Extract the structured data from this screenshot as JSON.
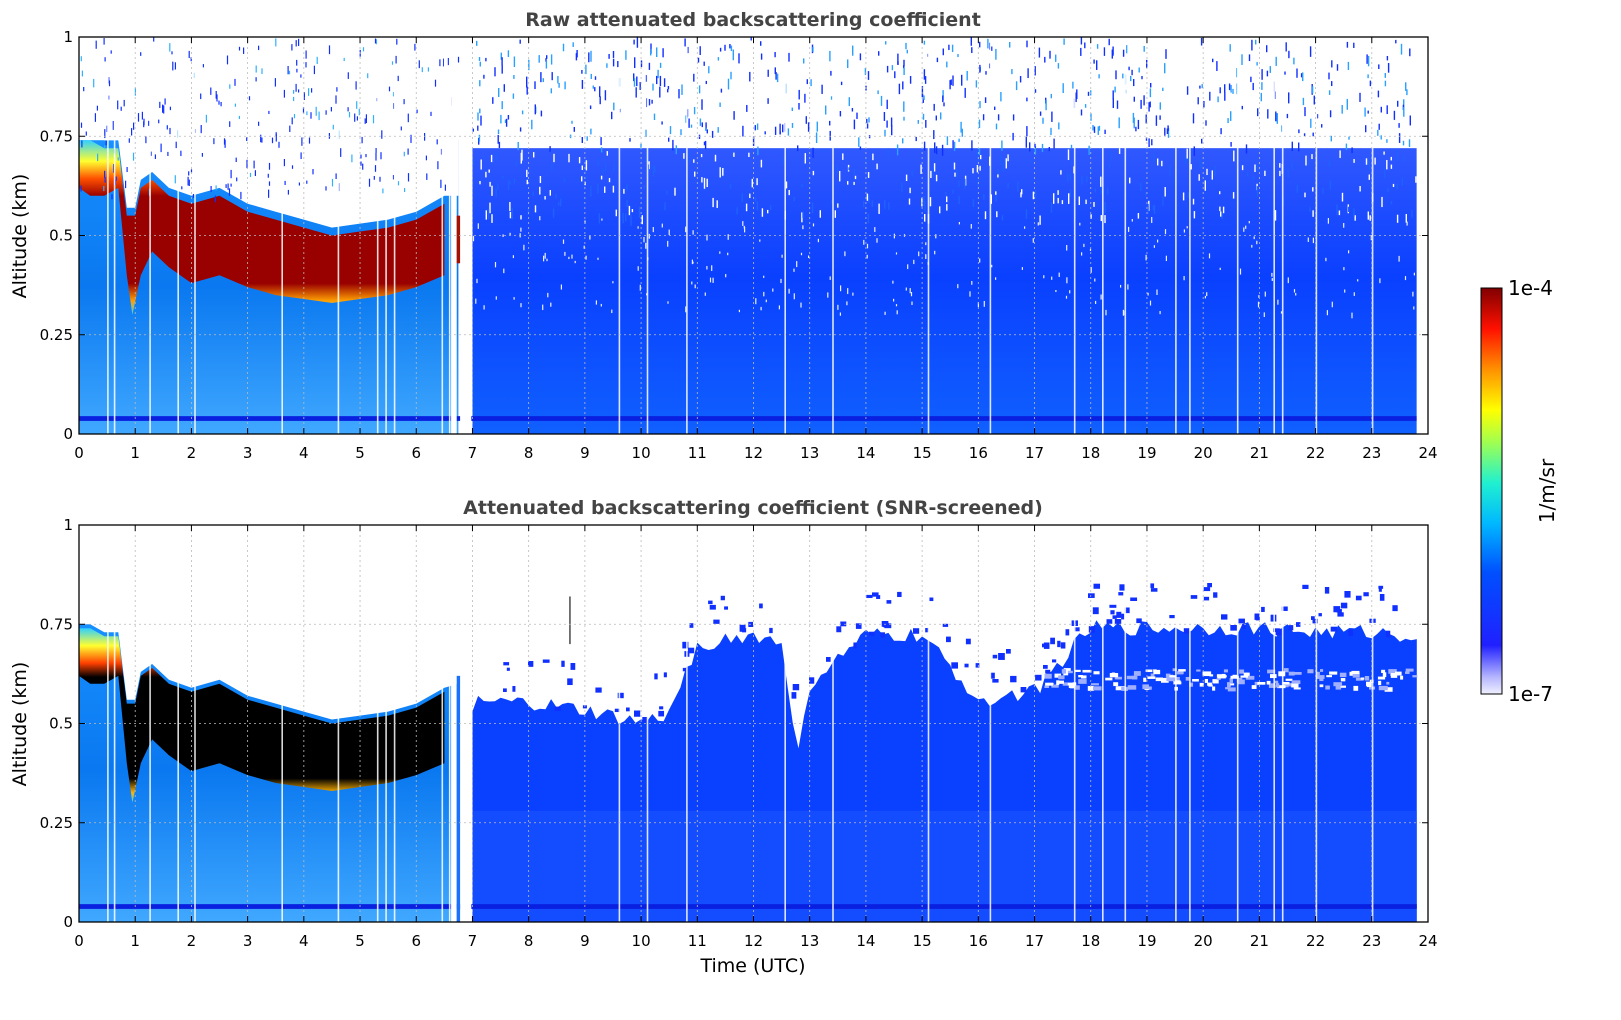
{
  "chart_data": [
    {
      "type": "heatmap",
      "title": "Raw attenuated backscattering coefficient",
      "xlabel": "",
      "ylabel": "Altitude (km)",
      "xlim": [
        0,
        24
      ],
      "ylim": [
        0,
        1
      ],
      "xticks": [
        "0",
        "1",
        "2",
        "3",
        "4",
        "5",
        "6",
        "7",
        "8",
        "9",
        "10",
        "11",
        "12",
        "13",
        "14",
        "15",
        "16",
        "17",
        "18",
        "19",
        "20",
        "21",
        "22",
        "23",
        "24"
      ],
      "yticks": [
        "0",
        "0.25",
        "0.5",
        "0.75",
        "1"
      ],
      "grid": true,
      "layer_top_km": [
        [
          0.0,
          0.74
        ],
        [
          0.2,
          0.74
        ],
        [
          0.45,
          0.72
        ],
        [
          0.7,
          0.72
        ],
        [
          0.85,
          0.55
        ],
        [
          1.0,
          0.55
        ],
        [
          1.1,
          0.62
        ],
        [
          1.3,
          0.64
        ],
        [
          1.6,
          0.6
        ],
        [
          2.0,
          0.58
        ],
        [
          2.5,
          0.6
        ],
        [
          3.0,
          0.56
        ],
        [
          3.5,
          0.54
        ],
        [
          4.0,
          0.52
        ],
        [
          4.5,
          0.5
        ],
        [
          5.0,
          0.51
        ],
        [
          5.5,
          0.52
        ],
        [
          6.0,
          0.54
        ],
        [
          6.5,
          0.58
        ]
      ],
      "layer_bottom_km": [
        [
          0.0,
          0.62
        ],
        [
          0.2,
          0.6
        ],
        [
          0.45,
          0.6
        ],
        [
          0.7,
          0.62
        ],
        [
          0.85,
          0.4
        ],
        [
          0.95,
          0.3
        ],
        [
          1.1,
          0.4
        ],
        [
          1.3,
          0.46
        ],
        [
          1.6,
          0.42
        ],
        [
          2.0,
          0.38
        ],
        [
          2.5,
          0.4
        ],
        [
          3.0,
          0.37
        ],
        [
          3.5,
          0.35
        ],
        [
          4.0,
          0.34
        ],
        [
          4.5,
          0.33
        ],
        [
          5.0,
          0.34
        ],
        [
          5.5,
          0.35
        ],
        [
          6.0,
          0.37
        ],
        [
          6.5,
          0.4
        ]
      ]
    },
    {
      "type": "heatmap",
      "title": "Attenuated backscattering coefficient (SNR-screened)",
      "xlabel": "Time (UTC)",
      "ylabel": "Altitude (km)",
      "xlim": [
        0,
        24
      ],
      "ylim": [
        0,
        1
      ],
      "xticks": [
        "0",
        "1",
        "2",
        "3",
        "4",
        "5",
        "6",
        "7",
        "8",
        "9",
        "10",
        "11",
        "12",
        "13",
        "14",
        "15",
        "16",
        "17",
        "18",
        "19",
        "20",
        "21",
        "22",
        "23",
        "24"
      ],
      "yticks": [
        "0",
        "0.25",
        "0.5",
        "0.75",
        "1"
      ],
      "grid": true,
      "signal_top_km": [
        [
          7.0,
          0.55
        ],
        [
          8.0,
          0.55
        ],
        [
          9.0,
          0.53
        ],
        [
          10.0,
          0.5
        ],
        [
          10.5,
          0.52
        ],
        [
          11.0,
          0.7
        ],
        [
          12.0,
          0.72
        ],
        [
          12.5,
          0.7
        ],
        [
          12.8,
          0.42
        ],
        [
          13.0,
          0.6
        ],
        [
          14.0,
          0.72
        ],
        [
          15.0,
          0.72
        ],
        [
          16.0,
          0.56
        ],
        [
          17.0,
          0.58
        ],
        [
          18.0,
          0.74
        ],
        [
          19.0,
          0.74
        ],
        [
          20.0,
          0.74
        ],
        [
          21.0,
          0.74
        ],
        [
          22.0,
          0.73
        ],
        [
          23.0,
          0.73
        ],
        [
          23.8,
          0.72
        ]
      ]
    }
  ],
  "colorbar": {
    "max_label": "1e-4",
    "min_label": "1e-7",
    "unit_label": "1/m/sr",
    "colormap": "jet",
    "scale": "log"
  }
}
